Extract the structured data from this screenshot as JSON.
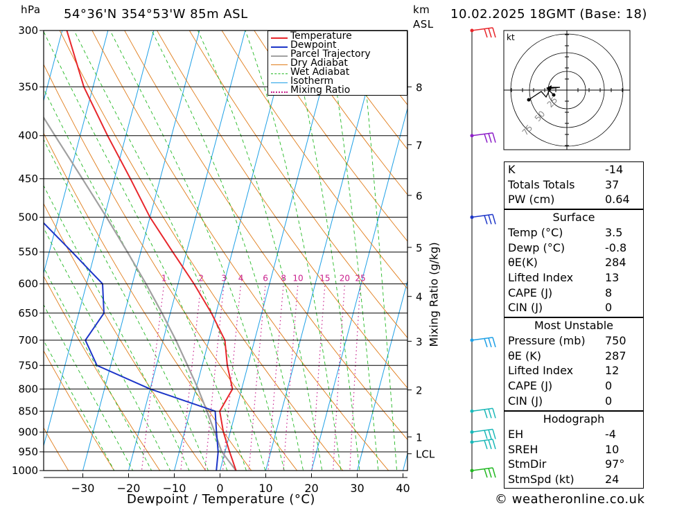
{
  "header": {
    "location": "54°36'N  354°53'W  85m  ASL",
    "datetime": "10.02.2025  18GMT  (Base: 18)",
    "pressure_unit": "hPa",
    "height_unit": "km",
    "height_unit2": "ASL"
  },
  "credit": "© weatheronline.co.uk",
  "hodograph_unit": "kt",
  "hodograph_rings": [
    "25",
    "50",
    "75"
  ],
  "legend": [
    {
      "label": "Temperature",
      "color": "#e8262b",
      "style": "solid"
    },
    {
      "label": "Dewpoint",
      "color": "#1c35c8",
      "style": "solid"
    },
    {
      "label": "Parcel Trajectory",
      "color": "#a0a0a0",
      "style": "solid"
    },
    {
      "label": "Dry Adiabat",
      "color": "#e07b18",
      "style": "solid"
    },
    {
      "label": "Wet Adiabat",
      "color": "#22b822",
      "style": "dashed"
    },
    {
      "label": "Isotherm",
      "color": "#1ea0e6",
      "style": "solid"
    },
    {
      "label": "Mixing Ratio",
      "color": "#c81e8c",
      "style": "dotted"
    }
  ],
  "indices": {
    "top": [
      {
        "key": "K",
        "value": "-14"
      },
      {
        "key": "Totals Totals",
        "value": "37"
      },
      {
        "key": "PW (cm)",
        "value": "0.64"
      }
    ],
    "surface": {
      "title": "Surface",
      "rows": [
        {
          "key": "Temp (°C)",
          "value": "3.5"
        },
        {
          "key": "Dewp (°C)",
          "value": "-0.8"
        },
        {
          "key": "θE(K)",
          "value": "284"
        },
        {
          "key": "Lifted Index",
          "value": "13"
        },
        {
          "key": "CAPE (J)",
          "value": "8"
        },
        {
          "key": "CIN (J)",
          "value": "0"
        }
      ]
    },
    "most_unstable": {
      "title": "Most Unstable",
      "rows": [
        {
          "key": "Pressure (mb)",
          "value": "750"
        },
        {
          "key": "θE (K)",
          "value": "287"
        },
        {
          "key": "Lifted Index",
          "value": "12"
        },
        {
          "key": "CAPE (J)",
          "value": "0"
        },
        {
          "key": "CIN (J)",
          "value": "0"
        }
      ]
    },
    "hodograph": {
      "title": "Hodograph",
      "rows": [
        {
          "key": "EH",
          "value": "-4"
        },
        {
          "key": "SREH",
          "value": "10"
        },
        {
          "key": "StmDir",
          "value": "97°"
        },
        {
          "key": "StmSpd (kt)",
          "value": "24"
        }
      ]
    }
  },
  "chart_data": {
    "type": "line",
    "title": "",
    "xlabel": "Dewpoint / Temperature (°C)",
    "ylabel": "hPa",
    "y2label": "Mixing Ratio (g/kg)",
    "xlim": [
      -40,
      40
    ],
    "ylim": [
      1000,
      300
    ],
    "y_scale": "log",
    "pressure_ticks": [
      300,
      350,
      400,
      450,
      500,
      550,
      600,
      650,
      700,
      750,
      800,
      850,
      900,
      950,
      1000
    ],
    "temperature_ticks": [
      -30,
      -20,
      -10,
      0,
      10,
      20,
      30,
      40
    ],
    "km_ticks": [
      {
        "label": "8",
        "p": 350
      },
      {
        "label": "7",
        "p": 410
      },
      {
        "label": "6",
        "p": 471
      },
      {
        "label": "5",
        "p": 543
      },
      {
        "label": "4",
        "p": 621
      },
      {
        "label": "3",
        "p": 702
      },
      {
        "label": "2",
        "p": 802
      },
      {
        "label": "1",
        "p": 912
      },
      {
        "label": "LCL",
        "p": 955
      }
    ],
    "mixing_ratio_labels": [
      "1",
      "2",
      "3",
      "4",
      "6",
      "8",
      "10",
      "15",
      "20",
      "25"
    ],
    "series": [
      {
        "name": "Temperature",
        "p": [
          1000,
          950,
          900,
          850,
          800,
          750,
          700,
          650,
          600,
          550,
          500,
          450,
          400,
          350,
          300
        ],
        "t": [
          3.5,
          1.0,
          -1.5,
          -3.5,
          -2.0,
          -4.5,
          -6.5,
          -11.0,
          -16.5,
          -23.0,
          -30.0,
          -36.5,
          -44.0,
          -52.0,
          -59.0
        ]
      },
      {
        "name": "Dewpoint",
        "p": [
          1000,
          950,
          900,
          850,
          800,
          750,
          700,
          650,
          600,
          550,
          500,
          450,
          400,
          350,
          300
        ],
        "t": [
          -0.8,
          -1.5,
          -3.0,
          -4.5,
          -20.0,
          -33.0,
          -37.0,
          -34.5,
          -36.5,
          -45.0,
          -54.5,
          -58.0,
          -60.0,
          -72.0,
          -76.0
        ]
      },
      {
        "name": "Parcel Trajectory",
        "p": [
          1000,
          950,
          900,
          850,
          800,
          750,
          700,
          650,
          600,
          550,
          500,
          450,
          400,
          350,
          300
        ],
        "t": [
          3.5,
          -0.7,
          -3.4,
          -6.3,
          -9.5,
          -13.2,
          -17.2,
          -21.8,
          -27.0,
          -32.9,
          -39.5,
          -47.0,
          -55.5,
          -65.0,
          -76.0
        ]
      }
    ],
    "wind_barbs_p": [
      300,
      400,
      500,
      700,
      850,
      900,
      925,
      1000
    ]
  }
}
